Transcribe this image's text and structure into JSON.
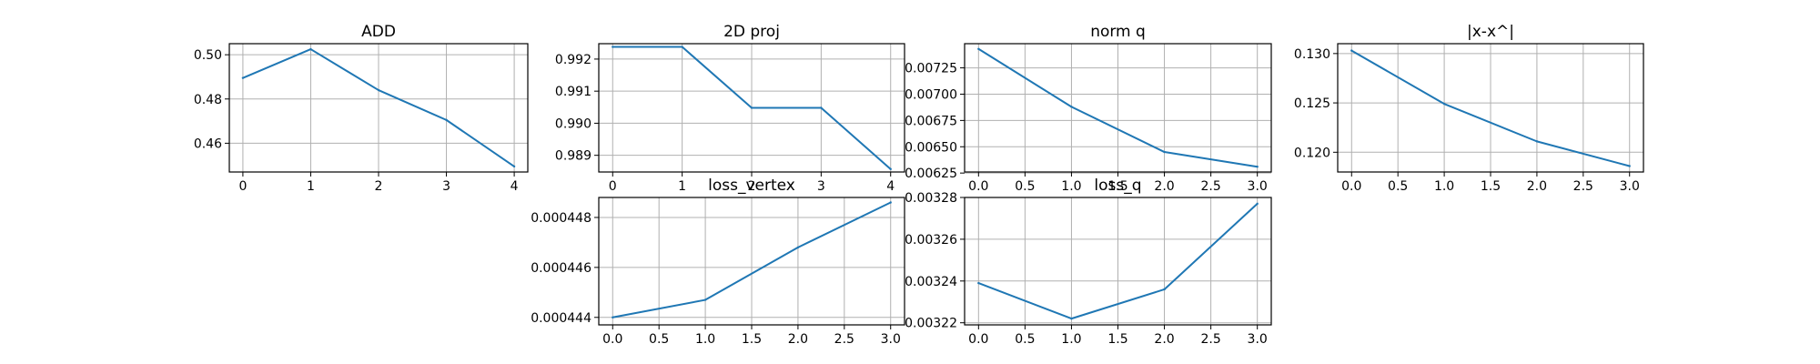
{
  "colors": {
    "series": "#1f77b4",
    "grid": "#b0b0b0",
    "axes": "#000000"
  },
  "chart_data": [
    {
      "id": "add",
      "type": "line",
      "title": "ADD",
      "xlabel": "",
      "ylabel": "",
      "x": [
        0,
        1,
        2,
        3,
        4
      ],
      "series": [
        {
          "values": [
            0.4895,
            0.5025,
            0.484,
            0.4705,
            0.4495
          ]
        }
      ],
      "xlim": [
        -0.2,
        4.2
      ],
      "ylim": [
        0.447,
        0.505
      ],
      "xticks": [
        0,
        1,
        2,
        3,
        4
      ],
      "xticklabels": [
        "0",
        "1",
        "2",
        "3",
        "4"
      ],
      "yticks": [
        0.46,
        0.48,
        0.5
      ],
      "yticklabels": [
        "0.46",
        "0.48",
        "0.50"
      ],
      "grid": true
    },
    {
      "id": "proj2d",
      "type": "line",
      "title": "2D proj",
      "xlabel": "",
      "ylabel": "",
      "x": [
        0,
        1,
        2,
        3,
        4
      ],
      "series": [
        {
          "values": [
            0.99238,
            0.99238,
            0.99048,
            0.99048,
            0.98857
          ]
        }
      ],
      "xlim": [
        -0.2,
        4.2
      ],
      "ylim": [
        0.98848,
        0.99248
      ],
      "xticks": [
        0,
        1,
        2,
        3,
        4
      ],
      "xticklabels": [
        "0",
        "1",
        "2",
        "3",
        "4"
      ],
      "yticks": [
        0.989,
        0.99,
        0.991,
        0.992
      ],
      "yticklabels": [
        "0.989",
        "0.990",
        "0.991",
        "0.992"
      ],
      "grid": true
    },
    {
      "id": "normq",
      "type": "line",
      "title": "norm q",
      "xlabel": "",
      "ylabel": "",
      "x": [
        0,
        1,
        2,
        3
      ],
      "series": [
        {
          "values": [
            0.00743,
            0.00688,
            0.00645,
            0.00631
          ]
        }
      ],
      "xlim": [
        -0.15,
        3.15
      ],
      "ylim": [
        0.00626,
        0.00748
      ],
      "xticks": [
        0,
        0.5,
        1,
        1.5,
        2,
        2.5,
        3
      ],
      "xticklabels": [
        "0.0",
        "0.5",
        "1.0",
        "1.5",
        "2.0",
        "2.5",
        "3.0"
      ],
      "yticks": [
        0.00625,
        0.0065,
        0.00675,
        0.007,
        0.00725
      ],
      "yticklabels": [
        "0.00625",
        "0.00650",
        "0.00675",
        "0.00700",
        "0.00725"
      ],
      "grid": true
    },
    {
      "id": "xdiff",
      "type": "line",
      "title": "|x-x^|",
      "xlabel": "",
      "ylabel": "",
      "x": [
        0,
        1,
        2,
        3
      ],
      "series": [
        {
          "values": [
            0.1303,
            0.1249,
            0.1211,
            0.1186
          ]
        }
      ],
      "xlim": [
        -0.15,
        3.15
      ],
      "ylim": [
        0.118,
        0.131
      ],
      "xticks": [
        0,
        0.5,
        1,
        1.5,
        2,
        2.5,
        3
      ],
      "xticklabels": [
        "0.0",
        "0.5",
        "1.0",
        "1.5",
        "2.0",
        "2.5",
        "3.0"
      ],
      "yticks": [
        0.12,
        0.125,
        0.13
      ],
      "yticklabels": [
        "0.120",
        "0.125",
        "0.130"
      ],
      "grid": true
    },
    {
      "id": "lossvertex",
      "type": "line",
      "title": "loss_vertex",
      "xlabel": "",
      "ylabel": "",
      "x": [
        0,
        1,
        2,
        3
      ],
      "series": [
        {
          "values": [
            0.000444,
            0.0004447,
            0.0004468,
            0.0004486
          ]
        }
      ],
      "xlim": [
        -0.15,
        3.15
      ],
      "ylim": [
        0.0004437,
        0.0004488
      ],
      "xticks": [
        0,
        0.5,
        1,
        1.5,
        2,
        2.5,
        3
      ],
      "xticklabels": [
        "0.0",
        "0.5",
        "1.0",
        "1.5",
        "2.0",
        "2.5",
        "3.0"
      ],
      "yticks": [
        0.000444,
        0.000446,
        0.000448
      ],
      "yticklabels": [
        "0.000444",
        "0.000446",
        "0.000448"
      ],
      "grid": true
    },
    {
      "id": "lossq",
      "type": "line",
      "title": "loss_q",
      "xlabel": "",
      "ylabel": "",
      "x": [
        0,
        1,
        2,
        3
      ],
      "series": [
        {
          "values": [
            0.003239,
            0.003222,
            0.003236,
            0.003277
          ]
        }
      ],
      "xlim": [
        -0.15,
        3.15
      ],
      "ylim": [
        0.003219,
        0.00328
      ],
      "xticks": [
        0,
        0.5,
        1,
        1.5,
        2,
        2.5,
        3
      ],
      "xticklabels": [
        "0.0",
        "0.5",
        "1.0",
        "1.5",
        "2.0",
        "2.5",
        "3.0"
      ],
      "yticks": [
        0.00322,
        0.00324,
        0.00326,
        0.00328
      ],
      "yticklabels": [
        "0.00322",
        "0.00324",
        "0.00326",
        "0.00328"
      ],
      "grid": true
    }
  ]
}
